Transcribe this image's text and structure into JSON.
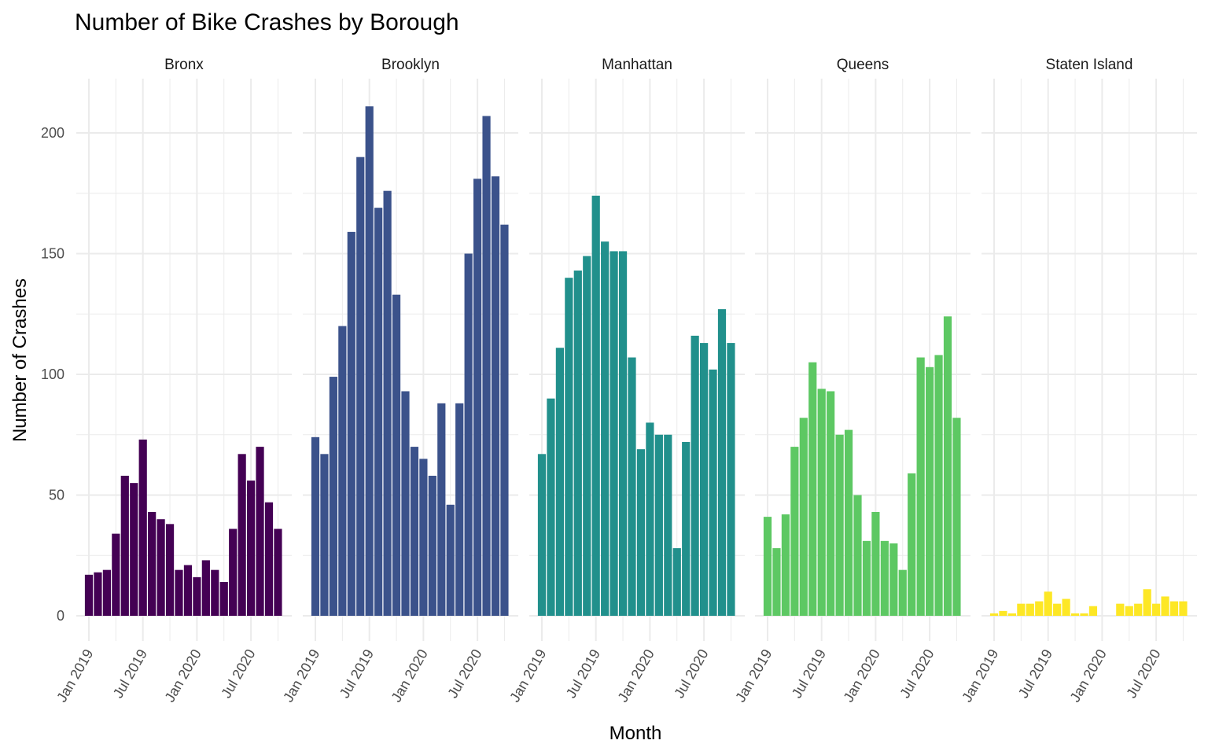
{
  "chart_data": {
    "type": "bar",
    "title": "Number of Bike Crashes by Borough",
    "xlabel": "Month",
    "ylabel": "Number of Crashes",
    "ylim": [
      0,
      220
    ],
    "y_ticks": [
      0,
      50,
      100,
      150,
      200
    ],
    "x_tick_labels": [
      "Jan 2019",
      "Jul 2019",
      "Jan 2020",
      "Jul 2020"
    ],
    "x": [
      "2019-01",
      "2019-02",
      "2019-03",
      "2019-04",
      "2019-05",
      "2019-06",
      "2019-07",
      "2019-08",
      "2019-09",
      "2019-10",
      "2019-11",
      "2019-12",
      "2020-01",
      "2020-02",
      "2020-03",
      "2020-04",
      "2020-05",
      "2020-06",
      "2020-07",
      "2020-08",
      "2020-09",
      "2020-10",
      "2020-11"
    ],
    "grid": true,
    "legend": "none",
    "series": [
      {
        "name": "Bronx",
        "color": "#440154",
        "values": [
          17,
          18,
          19,
          34,
          58,
          55,
          73,
          43,
          40,
          38,
          19,
          21,
          16,
          23,
          19,
          14,
          36,
          67,
          56,
          70,
          47,
          36,
          null
        ]
      },
      {
        "name": "Brooklyn",
        "color": "#3b528b",
        "values": [
          74,
          67,
          99,
          120,
          159,
          190,
          211,
          169,
          176,
          133,
          93,
          70,
          65,
          58,
          88,
          46,
          88,
          150,
          181,
          207,
          182,
          162,
          null
        ]
      },
      {
        "name": "Manhattan",
        "color": "#21908c",
        "values": [
          67,
          90,
          111,
          140,
          143,
          149,
          174,
          155,
          151,
          151,
          107,
          69,
          80,
          75,
          75,
          28,
          72,
          116,
          113,
          102,
          127,
          113,
          null
        ]
      },
      {
        "name": "Queens",
        "color": "#5dc863",
        "values": [
          41,
          28,
          42,
          70,
          82,
          105,
          94,
          93,
          75,
          77,
          50,
          31,
          43,
          31,
          30,
          19,
          59,
          107,
          103,
          108,
          124,
          82,
          null
        ]
      },
      {
        "name": "Staten Island",
        "color": "#fde725",
        "values": [
          1,
          2,
          1,
          5,
          5,
          6,
          10,
          5,
          7,
          1,
          1,
          4,
          null,
          null,
          5,
          4,
          5,
          11,
          5,
          8,
          6,
          6,
          null
        ]
      }
    ]
  }
}
